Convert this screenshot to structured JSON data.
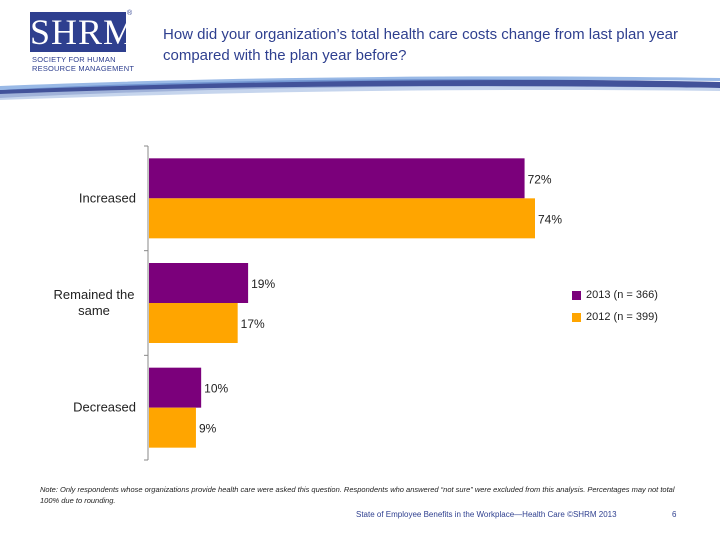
{
  "logo": {
    "name": "SHRM",
    "registered": "®",
    "sub_lines": [
      "SOCIETY FOR HUMAN",
      "RESOURCE MANAGEMENT"
    ]
  },
  "title": "How did your organization’s total health care costs change from last plan year compared with the plan year before?",
  "colors": {
    "brand": "#2e3f8f",
    "series_2013": "#7b007b",
    "series_2012": "#ffa500"
  },
  "chart_data": {
    "type": "bar",
    "orientation": "horizontal",
    "categories": [
      "Increased",
      "Remained the same",
      "Decreased"
    ],
    "series": [
      {
        "name": "2013 (n = 366)",
        "values": [
          72,
          19,
          10
        ],
        "labels": [
          "72%",
          "19%",
          "10%"
        ]
      },
      {
        "name": "2012 (n = 399)",
        "values": [
          74,
          17,
          9
        ],
        "labels": [
          "74%",
          "17%",
          "9%"
        ]
      }
    ],
    "xlim": [
      0,
      80
    ],
    "grid": false,
    "legend_position": "right"
  },
  "note": "Note: Only respondents whose organizations provide health care were asked this question. Respondents who answered “not sure” were excluded from this analysis. Percentages may not total 100% due to rounding.",
  "footer": "State of Employee Benefits in the Workplace—Health Care ©SHRM 2013",
  "page_number": "6"
}
